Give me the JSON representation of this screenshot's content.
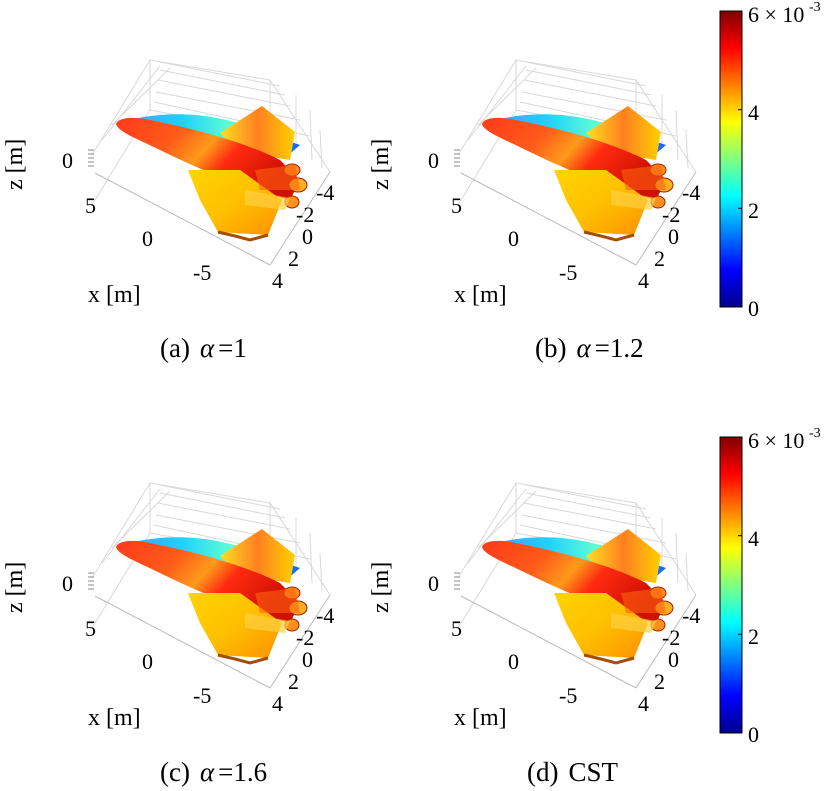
{
  "panels": [
    {
      "id": "a",
      "caption_prefix": "(a)",
      "caption_greek": "α",
      "caption_value": "=1"
    },
    {
      "id": "b",
      "caption_prefix": "(b)",
      "caption_greek": "α",
      "caption_value": "=1.2"
    },
    {
      "id": "c",
      "caption_prefix": "(c)",
      "caption_greek": "α",
      "caption_value": "=1.6"
    },
    {
      "id": "d",
      "caption_prefix": "(d)",
      "caption_greek": "",
      "caption_value": "CST"
    }
  ],
  "axes": {
    "z_label": "z [m]",
    "x_label": "x [m]",
    "z_ticks": [
      "0"
    ],
    "x_ticks": [
      "5",
      "0",
      "-5"
    ],
    "y_ticks": [
      "-4",
      "-2",
      "0",
      "2",
      "4"
    ]
  },
  "colorbar": {
    "ticks": [
      "0",
      "2",
      "4"
    ],
    "top_label": "6 × 10",
    "exponent": "-3",
    "colors": [
      "#00008f",
      "#0000ff",
      "#0080ff",
      "#00ffff",
      "#80ff80",
      "#ffff00",
      "#ff8000",
      "#ff0000",
      "#800000"
    ]
  },
  "chart_data": [
    {
      "type": "other",
      "title": "",
      "caption": "(a) α =1",
      "colorbar_range": [
        0,
        0.006
      ]
    },
    {
      "type": "other",
      "title": "",
      "caption": "(b) α =1.2",
      "colorbar_range": [
        0,
        0.006
      ]
    },
    {
      "type": "other",
      "title": "",
      "caption": "(c) α =1.6",
      "colorbar_range": [
        0,
        0.006
      ]
    },
    {
      "type": "other",
      "title": "",
      "caption": "(d) CST",
      "colorbar_range": [
        0,
        0.006
      ]
    }
  ]
}
